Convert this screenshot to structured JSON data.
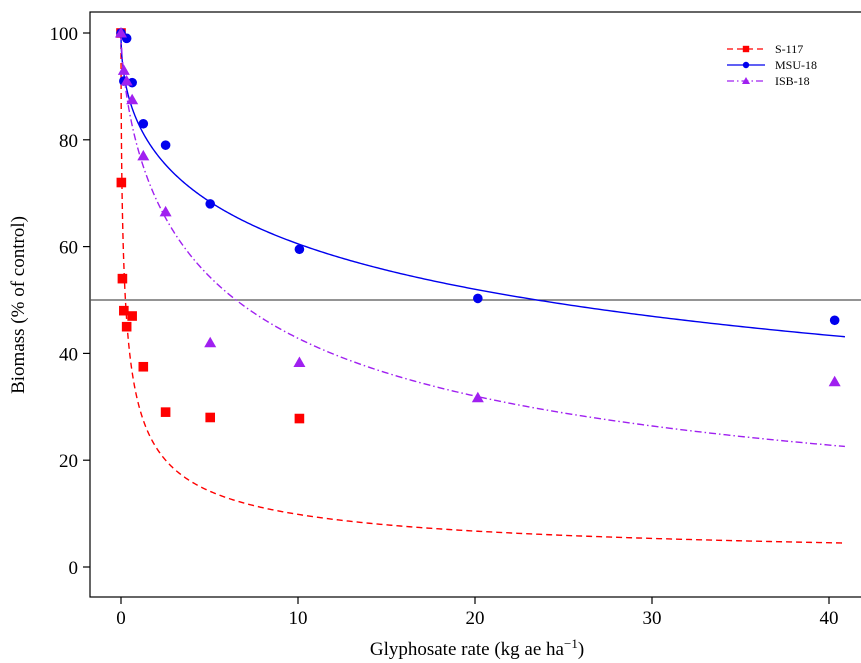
{
  "chart_data": {
    "type": "scatter",
    "xlabel": "Glyphosate rate (kg ae ha",
    "xlabel_sup": "−1",
    "xlabel_suffix": ")",
    "ylabel": "Biomass (% of control)",
    "xlim": [
      -1.6,
      42
    ],
    "ylim": [
      -5,
      105
    ],
    "x_ticks": [
      0,
      10,
      20,
      30,
      40
    ],
    "y_ticks": [
      0,
      20,
      40,
      60,
      80,
      100
    ],
    "x_tick_labels": [
      "0",
      "10",
      "20",
      "30",
      "40"
    ],
    "y_tick_labels": [
      "0",
      "20",
      "40",
      "60",
      "80",
      "100"
    ],
    "reference_line_y": 50,
    "grid": false,
    "legend_position": "top-right",
    "series": [
      {
        "name": "S-117",
        "color": "#ff0000",
        "marker": "square",
        "line_style": "dashed",
        "points": [
          {
            "x": 0,
            "y": 100
          },
          {
            "x": 0.02,
            "y": 72
          },
          {
            "x": 0.08,
            "y": 54
          },
          {
            "x": 0.16,
            "y": 48
          },
          {
            "x": 0.32,
            "y": 45
          },
          {
            "x": 0.63,
            "y": 47
          },
          {
            "x": 1.26,
            "y": 37.5
          },
          {
            "x": 2.52,
            "y": 29
          },
          {
            "x": 5.04,
            "y": 28
          },
          {
            "x": 10.08,
            "y": 27.8
          }
        ],
        "fit": {
          "d": 100,
          "b": 0.6,
          "e": 0.25
        }
      },
      {
        "name": "MSU-18",
        "color": "#0000ee",
        "marker": "circle",
        "line_style": "solid",
        "points": [
          {
            "x": 0,
            "y": 100
          },
          {
            "x": 0.16,
            "y": 91
          },
          {
            "x": 0.32,
            "y": 99
          },
          {
            "x": 0.63,
            "y": 90.7
          },
          {
            "x": 1.26,
            "y": 83
          },
          {
            "x": 2.52,
            "y": 79
          },
          {
            "x": 5.04,
            "y": 68
          },
          {
            "x": 10.08,
            "y": 59.5
          },
          {
            "x": 20.16,
            "y": 50.3
          },
          {
            "x": 40.32,
            "y": 46.2
          }
        ],
        "fit": {
          "d": 100,
          "b": 0.5,
          "e": 23.5
        }
      },
      {
        "name": "ISB-18",
        "color": "#a020f0",
        "marker": "triangle",
        "line_style": "dotdash",
        "points": [
          {
            "x": 0,
            "y": 100
          },
          {
            "x": 0.16,
            "y": 93
          },
          {
            "x": 0.32,
            "y": 91
          },
          {
            "x": 0.63,
            "y": 87.5
          },
          {
            "x": 1.26,
            "y": 77
          },
          {
            "x": 2.52,
            "y": 66.5
          },
          {
            "x": 5.04,
            "y": 42
          },
          {
            "x": 10.08,
            "y": 38.3
          },
          {
            "x": 20.16,
            "y": 31.7
          },
          {
            "x": 40.32,
            "y": 34.7
          }
        ],
        "fit": {
          "d": 100,
          "b": 0.67,
          "e": 6.5
        }
      }
    ]
  }
}
